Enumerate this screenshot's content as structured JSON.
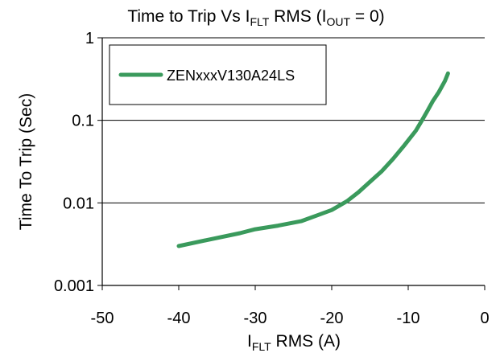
{
  "chart_data": {
    "type": "line",
    "title": {
      "parts": [
        {
          "t": "Time to Trip Vs I",
          "sub": false
        },
        {
          "t": "FLT",
          "sub": true
        },
        {
          "t": " RMS (I",
          "sub": false
        },
        {
          "t": "OUT",
          "sub": true
        },
        {
          "t": " = 0)",
          "sub": false
        }
      ]
    },
    "xlabel": {
      "parts": [
        {
          "t": "I",
          "sub": false
        },
        {
          "t": "FLT",
          "sub": true
        },
        {
          "t": " RMS (A)",
          "sub": false
        }
      ]
    },
    "ylabel": "Time To Trip (Sec)",
    "xlim": [
      -50,
      0
    ],
    "ylim": [
      0.001,
      1
    ],
    "yscale": "log",
    "xticks": [
      -50,
      -40,
      -30,
      -20,
      -10,
      0
    ],
    "xtick_labels": [
      "-50",
      "-40",
      "-30",
      "-20",
      "-10",
      "0"
    ],
    "yticks": [
      0.001,
      0.01,
      0.1,
      1
    ],
    "ytick_labels": [
      "0.001",
      "0.01",
      "0.1",
      "1"
    ],
    "grid": "horizontal-major",
    "legend": "top-left",
    "series": [
      {
        "name": "ZENxxxV130A24LS",
        "color": "#3a9a5c",
        "x": [
          -40,
          -36,
          -32,
          -30,
          -27,
          -24,
          -22,
          -20,
          -18,
          -16.5,
          -15,
          -13.5,
          -12,
          -10.5,
          -9,
          -8.2,
          -7.5,
          -6.8,
          -6,
          -5.2,
          -4.8
        ],
        "y": [
          0.003,
          0.0036,
          0.0043,
          0.0048,
          0.0053,
          0.006,
          0.007,
          0.0082,
          0.0105,
          0.0135,
          0.018,
          0.024,
          0.034,
          0.05,
          0.075,
          0.1,
          0.13,
          0.17,
          0.22,
          0.3,
          0.37
        ]
      }
    ]
  }
}
